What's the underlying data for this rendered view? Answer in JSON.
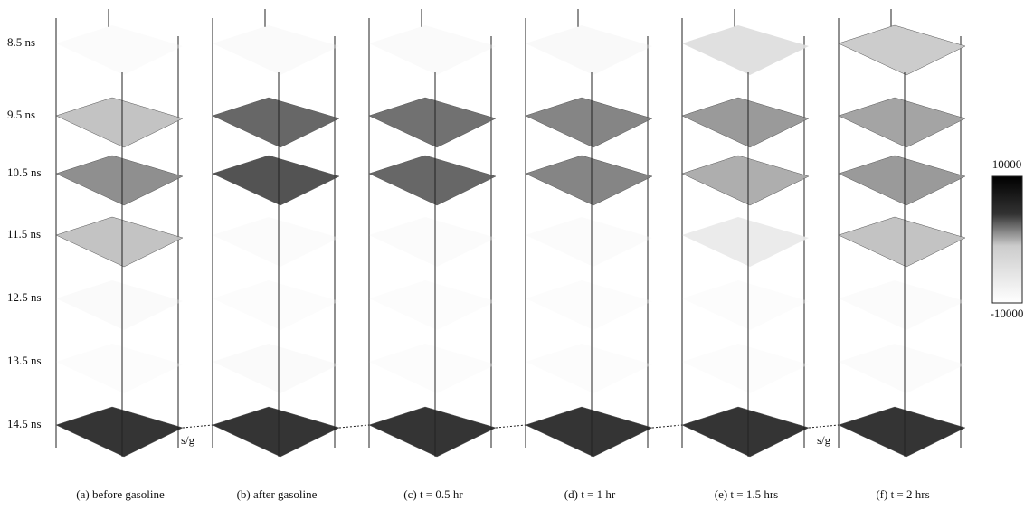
{
  "time_labels": [
    "8.5 ns",
    "9.5 ns",
    "10.5 ns",
    "11.5 ns",
    "12.5 ns",
    "13.5 ns",
    "14.5 ns"
  ],
  "panels": [
    {
      "caption": "(a) before gasoline"
    },
    {
      "caption": "(b) after gasoline"
    },
    {
      "caption": "(c) t = 0.5 hr"
    },
    {
      "caption": "(d) t = 1 hr"
    },
    {
      "caption": "(e) t = 1.5 hrs"
    },
    {
      "caption": "(f) t = 2 hrs"
    }
  ],
  "annotations": [
    "s/g",
    "s/g"
  ],
  "colorbar": {
    "max": "10000",
    "min": "-10000"
  }
}
